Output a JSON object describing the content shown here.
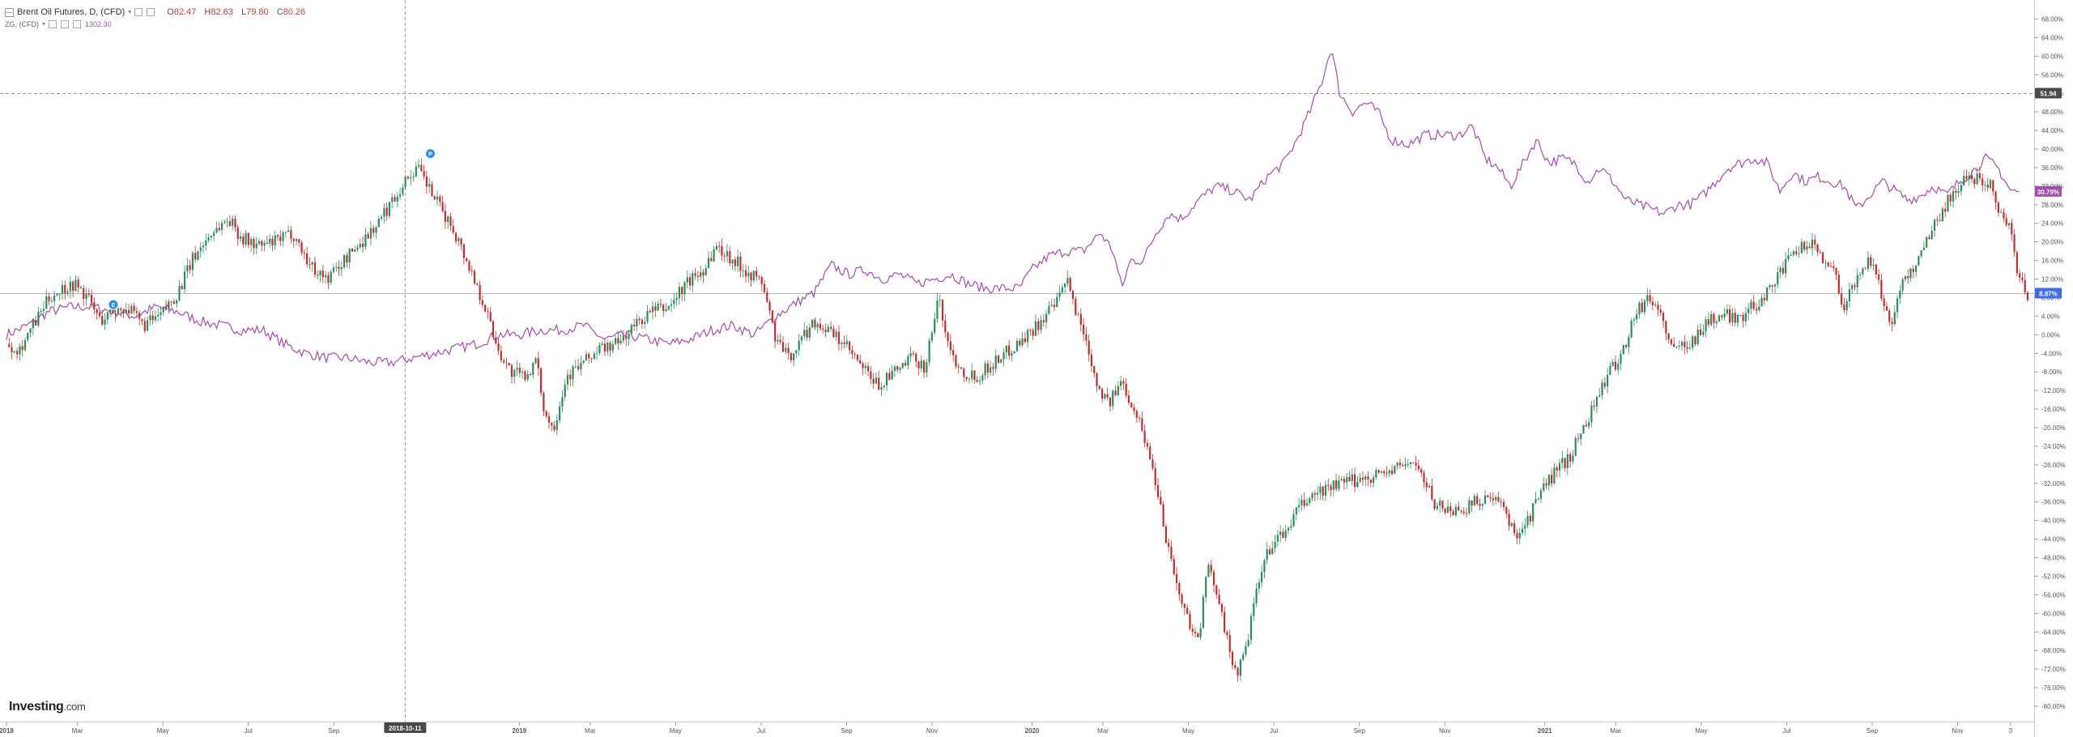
{
  "legend": {
    "title": "Brent Oil Futures, D, (CFD)",
    "open_label": "O",
    "open": "82.47",
    "high_label": "H",
    "high": "82.63",
    "low_label": "L",
    "low": "79.80",
    "close_label": "C",
    "close": "80.26",
    "secondary_title": "ZG, (CFD)",
    "secondary_value": "1302.30"
  },
  "logo": {
    "brand": "Investing",
    "suffix": ".com"
  },
  "colors": {
    "up": "#2e8a5f",
    "down": "#b8312f",
    "purple": "#a24ea8",
    "axis": "#888888",
    "crosshair": "#9a9a9a",
    "blue_badge": "#3d6de0"
  },
  "chart_data": {
    "type": "line",
    "title": "",
    "xlabel": "",
    "ylabel": "",
    "y_unit": "percent",
    "ylim": [
      -80,
      70
    ],
    "y_ticks": [
      "68.00%",
      "64.00%",
      "60.00%",
      "56.00%",
      "52.00%",
      "48.00%",
      "44.00%",
      "40.00%",
      "36.00%",
      "32.00%",
      "28.00%",
      "24.00%",
      "20.00%",
      "16.00%",
      "12.00%",
      "8.00%",
      "4.00%",
      "0.00%",
      "-4.00%",
      "-8.00%",
      "-12.00%",
      "-16.00%",
      "-20.00%",
      "-24.00%",
      "-28.00%",
      "-32.00%",
      "-36.00%",
      "-40.00%",
      "-44.00%",
      "-48.00%",
      "-52.00%",
      "-56.00%",
      "-60.00%",
      "-64.00%",
      "-68.00%",
      "-72.00%",
      "-76.00%",
      "-80.00%"
    ],
    "x_ticks": [
      {
        "t": 0.0,
        "label": "2018",
        "bold": true
      },
      {
        "t": 1.66,
        "label": "Mar"
      },
      {
        "t": 3.66,
        "label": "May"
      },
      {
        "t": 5.66,
        "label": "Jul"
      },
      {
        "t": 7.66,
        "label": "Sep"
      },
      {
        "t": 9.66,
        "label": "Nov"
      },
      {
        "t": 12.0,
        "label": "2019",
        "bold": true
      },
      {
        "t": 13.66,
        "label": "Mar"
      },
      {
        "t": 15.66,
        "label": "May"
      },
      {
        "t": 17.66,
        "label": "Jul"
      },
      {
        "t": 19.66,
        "label": "Sep"
      },
      {
        "t": 21.66,
        "label": "Nov"
      },
      {
        "t": 24.0,
        "label": "2020",
        "bold": true
      },
      {
        "t": 25.66,
        "label": "Mar"
      },
      {
        "t": 27.66,
        "label": "May"
      },
      {
        "t": 29.66,
        "label": "Jul"
      },
      {
        "t": 31.66,
        "label": "Sep"
      },
      {
        "t": 33.66,
        "label": "Nov"
      },
      {
        "t": 36.0,
        "label": "2021",
        "bold": true
      },
      {
        "t": 37.66,
        "label": "Mar"
      },
      {
        "t": 39.66,
        "label": "May"
      },
      {
        "t": 41.66,
        "label": "Jul"
      },
      {
        "t": 43.66,
        "label": "Sep"
      },
      {
        "t": 45.66,
        "label": "Nov"
      },
      {
        "t": 46.9,
        "label": "3"
      }
    ],
    "x_range_months": [
      0,
      47.3
    ],
    "crosshair": {
      "t": 9.33,
      "label": "2018-10-11",
      "y_value": 51.94,
      "y_label": "51.94"
    },
    "last_value_labels": [
      {
        "series": "ZG, (CFD)",
        "value": 30.79,
        "label": "30.79%"
      },
      {
        "series": "Brent Oil Futures, D, (CFD)",
        "value": 8.87,
        "label": "8.87%"
      }
    ],
    "markers": [
      {
        "t": 2.5,
        "y": 6.5,
        "label": "E"
      },
      {
        "t": 9.92,
        "y": 39,
        "label": "P"
      }
    ],
    "series": [
      {
        "name": "Brent Oil Futures, D, (CFD)",
        "style": "candlestick",
        "points": [
          [
            0.0,
            -2
          ],
          [
            0.3,
            -3
          ],
          [
            0.7,
            3
          ],
          [
            1.0,
            8
          ],
          [
            1.3,
            10
          ],
          [
            1.6,
            11
          ],
          [
            1.9,
            8
          ],
          [
            2.2,
            3
          ],
          [
            2.5,
            5
          ],
          [
            2.8,
            6
          ],
          [
            3.2,
            2
          ],
          [
            3.6,
            4
          ],
          [
            4.0,
            9
          ],
          [
            4.4,
            17
          ],
          [
            4.8,
            22
          ],
          [
            5.2,
            25
          ],
          [
            5.5,
            21
          ],
          [
            5.9,
            19
          ],
          [
            6.3,
            20
          ],
          [
            6.7,
            22
          ],
          [
            7.1,
            15
          ],
          [
            7.5,
            12
          ],
          [
            7.9,
            16
          ],
          [
            8.3,
            20
          ],
          [
            8.7,
            24
          ],
          [
            9.1,
            30
          ],
          [
            9.4,
            34
          ],
          [
            9.6,
            36
          ],
          [
            9.8,
            33
          ],
          [
            10.1,
            28
          ],
          [
            10.5,
            22
          ],
          [
            10.9,
            13
          ],
          [
            11.2,
            6
          ],
          [
            11.5,
            -3
          ],
          [
            11.8,
            -8
          ],
          [
            12.1,
            -9
          ],
          [
            12.4,
            -6
          ],
          [
            12.6,
            -17
          ],
          [
            12.8,
            -20
          ],
          [
            13.1,
            -9
          ],
          [
            13.5,
            -6
          ],
          [
            13.9,
            -3
          ],
          [
            14.3,
            -2
          ],
          [
            14.7,
            2
          ],
          [
            15.1,
            5
          ],
          [
            15.5,
            6
          ],
          [
            15.9,
            11
          ],
          [
            16.3,
            14
          ],
          [
            16.6,
            19
          ],
          [
            16.9,
            17
          ],
          [
            17.3,
            14
          ],
          [
            17.7,
            11
          ],
          [
            18.0,
            -1
          ],
          [
            18.3,
            -5
          ],
          [
            18.6,
            -1
          ],
          [
            18.9,
            3
          ],
          [
            19.2,
            1
          ],
          [
            19.6,
            -2
          ],
          [
            20.0,
            -7
          ],
          [
            20.4,
            -11
          ],
          [
            20.8,
            -8
          ],
          [
            21.2,
            -5
          ],
          [
            21.5,
            -7
          ],
          [
            21.8,
            8
          ],
          [
            22.1,
            -4
          ],
          [
            22.4,
            -8
          ],
          [
            22.7,
            -9
          ],
          [
            23.1,
            -6
          ],
          [
            23.5,
            -3
          ],
          [
            23.9,
            0
          ],
          [
            24.3,
            4
          ],
          [
            24.6,
            7
          ],
          [
            24.8,
            12
          ],
          [
            25.0,
            6
          ],
          [
            25.3,
            -2
          ],
          [
            25.5,
            -10
          ],
          [
            25.8,
            -15
          ],
          [
            26.1,
            -10
          ],
          [
            26.4,
            -16
          ],
          [
            26.6,
            -21
          ],
          [
            26.8,
            -28
          ],
          [
            27.0,
            -36
          ],
          [
            27.1,
            -42
          ],
          [
            27.3,
            -50
          ],
          [
            27.5,
            -58
          ],
          [
            27.7,
            -62
          ],
          [
            27.9,
            -66
          ],
          [
            28.1,
            -50
          ],
          [
            28.4,
            -57
          ],
          [
            28.6,
            -68
          ],
          [
            28.8,
            -73
          ],
          [
            29.0,
            -68
          ],
          [
            29.2,
            -58
          ],
          [
            29.4,
            -50
          ],
          [
            29.6,
            -45
          ],
          [
            29.9,
            -43
          ],
          [
            30.2,
            -38
          ],
          [
            30.5,
            -35
          ],
          [
            30.9,
            -33
          ],
          [
            31.3,
            -32
          ],
          [
            31.7,
            -31
          ],
          [
            32.1,
            -30
          ],
          [
            32.5,
            -29
          ],
          [
            32.9,
            -27
          ],
          [
            33.1,
            -30
          ],
          [
            33.4,
            -36
          ],
          [
            33.8,
            -38
          ],
          [
            34.2,
            -37
          ],
          [
            34.6,
            -35
          ],
          [
            35.0,
            -37
          ],
          [
            35.3,
            -43
          ],
          [
            35.6,
            -40
          ],
          [
            35.9,
            -34
          ],
          [
            36.2,
            -30
          ],
          [
            36.6,
            -26
          ],
          [
            37.0,
            -18
          ],
          [
            37.4,
            -10
          ],
          [
            37.8,
            -4
          ],
          [
            38.1,
            4
          ],
          [
            38.4,
            8
          ],
          [
            38.7,
            5
          ],
          [
            39.0,
            -4
          ],
          [
            39.2,
            -2
          ],
          [
            39.5,
            -1
          ],
          [
            39.8,
            3
          ],
          [
            40.2,
            4
          ],
          [
            40.6,
            4
          ],
          [
            41.0,
            7
          ],
          [
            41.4,
            12
          ],
          [
            41.8,
            17
          ],
          [
            42.2,
            20
          ],
          [
            42.5,
            17
          ],
          [
            42.8,
            13
          ],
          [
            43.0,
            6
          ],
          [
            43.3,
            12
          ],
          [
            43.6,
            17
          ],
          [
            43.9,
            8
          ],
          [
            44.1,
            2
          ],
          [
            44.3,
            10
          ],
          [
            44.6,
            14
          ],
          [
            44.9,
            20
          ],
          [
            45.2,
            25
          ],
          [
            45.5,
            30
          ],
          [
            45.8,
            33
          ],
          [
            46.1,
            34
          ],
          [
            46.4,
            33
          ],
          [
            46.6,
            28
          ],
          [
            46.9,
            22
          ],
          [
            47.1,
            12
          ],
          [
            47.3,
            8.87
          ]
        ]
      },
      {
        "name": "ZG, (CFD)",
        "style": "line",
        "points": [
          [
            0.0,
            0
          ],
          [
            0.5,
            2
          ],
          [
            1.0,
            5
          ],
          [
            1.5,
            6
          ],
          [
            2.0,
            6
          ],
          [
            2.5,
            5
          ],
          [
            3.0,
            4
          ],
          [
            3.5,
            6
          ],
          [
            4.0,
            5
          ],
          [
            4.5,
            3
          ],
          [
            5.0,
            2
          ],
          [
            5.5,
            1
          ],
          [
            6.0,
            1
          ],
          [
            6.5,
            -2
          ],
          [
            7.0,
            -4
          ],
          [
            7.5,
            -5
          ],
          [
            8.0,
            -5
          ],
          [
            8.5,
            -6
          ],
          [
            9.0,
            -6
          ],
          [
            9.5,
            -5
          ],
          [
            10.0,
            -4
          ],
          [
            10.5,
            -3
          ],
          [
            11.0,
            -2
          ],
          [
            11.5,
            0
          ],
          [
            12.0,
            0
          ],
          [
            12.5,
            1
          ],
          [
            13.0,
            1
          ],
          [
            13.5,
            2
          ],
          [
            14.0,
            -1
          ],
          [
            14.5,
            0
          ],
          [
            15.0,
            -1
          ],
          [
            15.5,
            -2
          ],
          [
            16.0,
            -1
          ],
          [
            16.5,
            1
          ],
          [
            17.0,
            2
          ],
          [
            17.5,
            0
          ],
          [
            18.0,
            4
          ],
          [
            18.5,
            7
          ],
          [
            18.9,
            9
          ],
          [
            19.3,
            15
          ],
          [
            19.7,
            13
          ],
          [
            20.1,
            14
          ],
          [
            20.5,
            12
          ],
          [
            20.9,
            13
          ],
          [
            21.3,
            11
          ],
          [
            21.7,
            12
          ],
          [
            22.1,
            13
          ],
          [
            22.5,
            11
          ],
          [
            22.9,
            10
          ],
          [
            23.3,
            10
          ],
          [
            23.7,
            10
          ],
          [
            24.0,
            14
          ],
          [
            24.4,
            17
          ],
          [
            24.8,
            18
          ],
          [
            25.2,
            18
          ],
          [
            25.6,
            22
          ],
          [
            25.9,
            18
          ],
          [
            26.1,
            10
          ],
          [
            26.3,
            16
          ],
          [
            26.6,
            16
          ],
          [
            26.9,
            22
          ],
          [
            27.2,
            26
          ],
          [
            27.5,
            25
          ],
          [
            27.9,
            29
          ],
          [
            28.3,
            32
          ],
          [
            28.7,
            31
          ],
          [
            29.1,
            29
          ],
          [
            29.5,
            34
          ],
          [
            29.9,
            37
          ],
          [
            30.2,
            42
          ],
          [
            30.5,
            48
          ],
          [
            30.8,
            55
          ],
          [
            31.0,
            62
          ],
          [
            31.2,
            52
          ],
          [
            31.5,
            48
          ],
          [
            31.8,
            50
          ],
          [
            32.1,
            48
          ],
          [
            32.4,
            42
          ],
          [
            32.8,
            41
          ],
          [
            33.2,
            43
          ],
          [
            33.6,
            43
          ],
          [
            34.0,
            43
          ],
          [
            34.3,
            45
          ],
          [
            34.6,
            38
          ],
          [
            34.9,
            36
          ],
          [
            35.2,
            32
          ],
          [
            35.5,
            37
          ],
          [
            35.8,
            42
          ],
          [
            36.1,
            37
          ],
          [
            36.4,
            38
          ],
          [
            36.7,
            37
          ],
          [
            37.0,
            33
          ],
          [
            37.3,
            36
          ],
          [
            37.6,
            33
          ],
          [
            37.9,
            29
          ],
          [
            38.2,
            28
          ],
          [
            38.5,
            27
          ],
          [
            38.8,
            26
          ],
          [
            39.1,
            28
          ],
          [
            39.4,
            28
          ],
          [
            39.7,
            30
          ],
          [
            40.0,
            33
          ],
          [
            40.3,
            36
          ],
          [
            40.6,
            37
          ],
          [
            40.9,
            38
          ],
          [
            41.2,
            37
          ],
          [
            41.5,
            31
          ],
          [
            41.8,
            35
          ],
          [
            42.1,
            33
          ],
          [
            42.4,
            34
          ],
          [
            42.7,
            33
          ],
          [
            43.0,
            32
          ],
          [
            43.3,
            27
          ],
          [
            43.6,
            30
          ],
          [
            43.9,
            33
          ],
          [
            44.2,
            31
          ],
          [
            44.5,
            29
          ],
          [
            44.8,
            30
          ],
          [
            45.1,
            32
          ],
          [
            45.4,
            30
          ],
          [
            45.7,
            33
          ],
          [
            46.0,
            35
          ],
          [
            46.3,
            38
          ],
          [
            46.6,
            36
          ],
          [
            46.9,
            31
          ],
          [
            47.1,
            30.79
          ]
        ]
      }
    ]
  }
}
